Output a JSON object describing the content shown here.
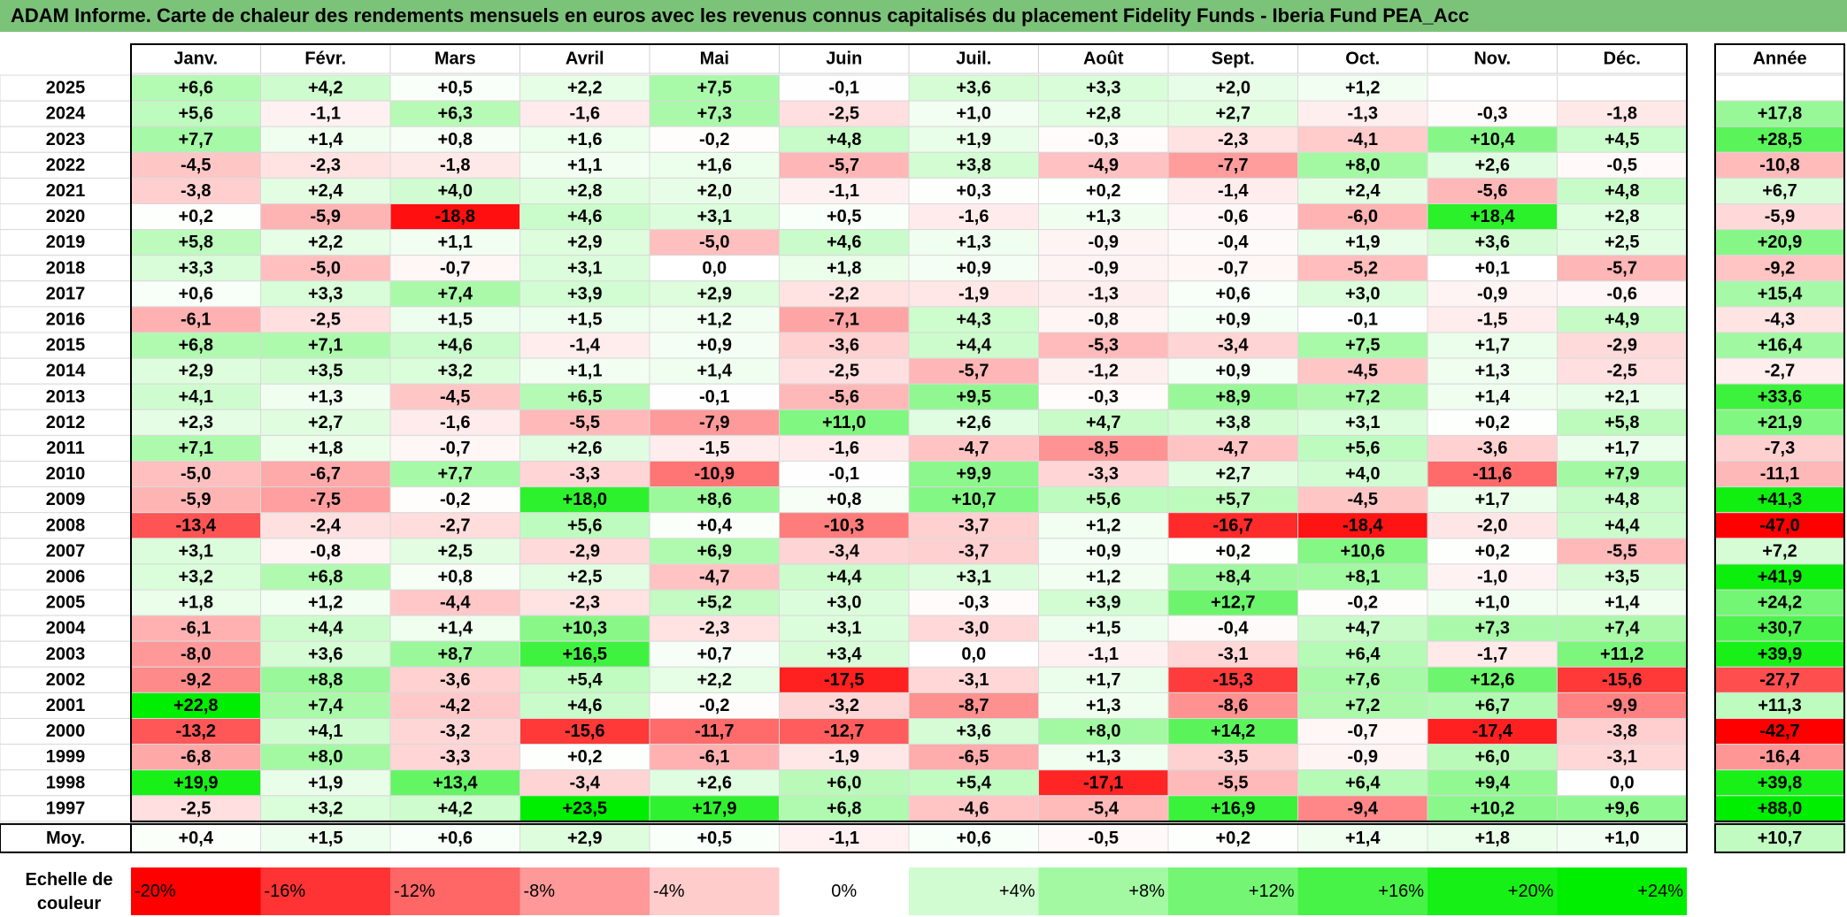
{
  "title": "ADAM Informe. Carte de chaleur des rendements mensuels en euros avec les revenus connus capitalisés du placement Fidelity Funds - Iberia Fund PEA_Acc",
  "chart_data": {
    "type": "heatmap",
    "months": [
      "Janv.",
      "Févr.",
      "Mars",
      "Avril",
      "Mai",
      "Juin",
      "Juil.",
      "Août",
      "Sept.",
      "Oct.",
      "Nov.",
      "Déc."
    ],
    "year_header": "Année",
    "rows": [
      {
        "year": "2025",
        "values": [
          "+6,6",
          "+4,2",
          "+0,5",
          "+2,2",
          "+7,5",
          "-0,1",
          "+3,6",
          "+3,3",
          "+2,0",
          "+1,2",
          "",
          ""
        ],
        "annual": ""
      },
      {
        "year": "2024",
        "values": [
          "+5,6",
          "-1,1",
          "+6,3",
          "-1,6",
          "+7,3",
          "-2,5",
          "+1,0",
          "+2,8",
          "+2,7",
          "-1,3",
          "-0,3",
          "-1,8"
        ],
        "annual": "+17,8"
      },
      {
        "year": "2023",
        "values": [
          "+7,7",
          "+1,4",
          "+0,8",
          "+1,6",
          "-0,2",
          "+4,8",
          "+1,9",
          "-0,3",
          "-2,3",
          "-4,1",
          "+10,4",
          "+4,5"
        ],
        "annual": "+28,5"
      },
      {
        "year": "2022",
        "values": [
          "-4,5",
          "-2,3",
          "-1,8",
          "+1,1",
          "+1,6",
          "-5,7",
          "+3,8",
          "-4,9",
          "-7,7",
          "+8,0",
          "+2,6",
          "-0,5"
        ],
        "annual": "-10,8"
      },
      {
        "year": "2021",
        "values": [
          "-3,8",
          "+2,4",
          "+4,0",
          "+2,8",
          "+2,0",
          "-1,1",
          "+0,3",
          "+0,2",
          "-1,4",
          "+2,4",
          "-5,6",
          "+4,8"
        ],
        "annual": "+6,7"
      },
      {
        "year": "2020",
        "values": [
          "+0,2",
          "-5,9",
          "-18,8",
          "+4,6",
          "+3,1",
          "+0,5",
          "-1,6",
          "+1,3",
          "-0,6",
          "-6,0",
          "+18,4",
          "+2,8"
        ],
        "annual": "-5,9"
      },
      {
        "year": "2019",
        "values": [
          "+5,8",
          "+2,2",
          "+1,1",
          "+2,9",
          "-5,0",
          "+4,6",
          "+1,3",
          "-0,9",
          "-0,4",
          "+1,9",
          "+3,6",
          "+2,5"
        ],
        "annual": "+20,9"
      },
      {
        "year": "2018",
        "values": [
          "+3,3",
          "-5,0",
          "-0,7",
          "+3,1",
          "0,0",
          "+1,8",
          "+0,9",
          "-0,9",
          "-0,7",
          "-5,2",
          "+0,1",
          "-5,7"
        ],
        "annual": "-9,2"
      },
      {
        "year": "2017",
        "values": [
          "+0,6",
          "+3,3",
          "+7,4",
          "+3,9",
          "+2,9",
          "-2,2",
          "-1,9",
          "-1,3",
          "+0,6",
          "+3,0",
          "-0,9",
          "-0,6"
        ],
        "annual": "+15,4"
      },
      {
        "year": "2016",
        "values": [
          "-6,1",
          "-2,5",
          "+1,5",
          "+1,5",
          "+1,2",
          "-7,1",
          "+4,3",
          "-0,8",
          "+0,9",
          "-0,1",
          "-1,5",
          "+4,9"
        ],
        "annual": "-4,3"
      },
      {
        "year": "2015",
        "values": [
          "+6,8",
          "+7,1",
          "+4,6",
          "-1,4",
          "+0,9",
          "-3,6",
          "+4,4",
          "-5,3",
          "-3,4",
          "+7,5",
          "+1,7",
          "-2,9"
        ],
        "annual": "+16,4"
      },
      {
        "year": "2014",
        "values": [
          "+2,9",
          "+3,5",
          "+3,2",
          "+1,1",
          "+1,4",
          "-2,5",
          "-5,7",
          "-1,2",
          "+0,9",
          "-4,5",
          "+1,3",
          "-2,5"
        ],
        "annual": "-2,7"
      },
      {
        "year": "2013",
        "values": [
          "+4,1",
          "+1,3",
          "-4,5",
          "+6,5",
          "-0,1",
          "-5,6",
          "+9,5",
          "-0,3",
          "+8,9",
          "+7,2",
          "+1,4",
          "+2,1"
        ],
        "annual": "+33,6"
      },
      {
        "year": "2012",
        "values": [
          "+2,3",
          "+2,7",
          "-1,6",
          "-5,5",
          "-7,9",
          "+11,0",
          "+2,6",
          "+4,7",
          "+3,8",
          "+3,1",
          "+0,2",
          "+5,8"
        ],
        "annual": "+21,9"
      },
      {
        "year": "2011",
        "values": [
          "+7,1",
          "+1,8",
          "-0,7",
          "+2,6",
          "-1,5",
          "-1,6",
          "-4,7",
          "-8,5",
          "-4,7",
          "+5,6",
          "-3,6",
          "+1,7"
        ],
        "annual": "-7,3"
      },
      {
        "year": "2010",
        "values": [
          "-5,0",
          "-6,7",
          "+7,7",
          "-3,3",
          "-10,9",
          "-0,1",
          "+9,9",
          "-3,3",
          "+2,7",
          "+4,0",
          "-11,6",
          "+7,9"
        ],
        "annual": "-11,1"
      },
      {
        "year": "2009",
        "values": [
          "-5,9",
          "-7,5",
          "-0,2",
          "+18,0",
          "+8,6",
          "+0,8",
          "+10,7",
          "+5,6",
          "+5,7",
          "-4,5",
          "+1,7",
          "+4,8"
        ],
        "annual": "+41,3"
      },
      {
        "year": "2008",
        "values": [
          "-13,4",
          "-2,4",
          "-2,7",
          "+5,6",
          "+0,4",
          "-10,3",
          "-3,7",
          "+1,2",
          "-16,7",
          "-18,4",
          "-2,0",
          "+4,4"
        ],
        "annual": "-47,0"
      },
      {
        "year": "2007",
        "values": [
          "+3,1",
          "-0,8",
          "+2,5",
          "-2,9",
          "+6,9",
          "-3,4",
          "-3,7",
          "+0,9",
          "+0,2",
          "+10,6",
          "+0,2",
          "-5,5"
        ],
        "annual": "+7,2"
      },
      {
        "year": "2006",
        "values": [
          "+3,2",
          "+6,8",
          "+0,8",
          "+2,5",
          "-4,7",
          "+4,4",
          "+3,1",
          "+1,2",
          "+8,4",
          "+8,1",
          "-1,0",
          "+3,5"
        ],
        "annual": "+41,9"
      },
      {
        "year": "2005",
        "values": [
          "+1,8",
          "+1,2",
          "-4,4",
          "-2,3",
          "+5,2",
          "+3,0",
          "-0,3",
          "+3,9",
          "+12,7",
          "-0,2",
          "+1,0",
          "+1,4"
        ],
        "annual": "+24,2"
      },
      {
        "year": "2004",
        "values": [
          "-6,1",
          "+4,4",
          "+1,4",
          "+10,3",
          "-2,3",
          "+3,1",
          "-3,0",
          "+1,5",
          "-0,4",
          "+4,7",
          "+7,3",
          "+7,4"
        ],
        "annual": "+30,7"
      },
      {
        "year": "2003",
        "values": [
          "-8,0",
          "+3,6",
          "+8,7",
          "+16,5",
          "+0,7",
          "+3,4",
          "0,0",
          "-1,1",
          "-3,1",
          "+6,4",
          "-1,7",
          "+11,2"
        ],
        "annual": "+39,9"
      },
      {
        "year": "2002",
        "values": [
          "-9,2",
          "+8,8",
          "-3,6",
          "+5,4",
          "+2,2",
          "-17,5",
          "-3,1",
          "+1,7",
          "-15,3",
          "+7,6",
          "+12,6",
          "-15,6"
        ],
        "annual": "-27,7"
      },
      {
        "year": "2001",
        "values": [
          "+22,8",
          "+7,4",
          "-4,2",
          "+4,6",
          "-0,2",
          "-3,2",
          "-8,7",
          "+1,3",
          "-8,6",
          "+7,2",
          "+6,7",
          "-9,9"
        ],
        "annual": "+11,3"
      },
      {
        "year": "2000",
        "values": [
          "-13,2",
          "+4,1",
          "-3,2",
          "-15,6",
          "-11,7",
          "-12,7",
          "+3,6",
          "+8,0",
          "+14,2",
          "-0,7",
          "-17,4",
          "-3,8"
        ],
        "annual": "-42,7"
      },
      {
        "year": "1999",
        "values": [
          "-6,8",
          "+8,0",
          "-3,3",
          "+0,2",
          "-6,1",
          "-1,9",
          "-6,5",
          "+1,3",
          "-3,5",
          "-0,9",
          "+6,0",
          "-3,1"
        ],
        "annual": "-16,4"
      },
      {
        "year": "1998",
        "values": [
          "+19,9",
          "+1,9",
          "+13,4",
          "-3,4",
          "+2,6",
          "+6,0",
          "+5,4",
          "-17,1",
          "-5,5",
          "+6,4",
          "+9,4",
          "0,0"
        ],
        "annual": "+39,8"
      },
      {
        "year": "1997",
        "values": [
          "-2,5",
          "+3,2",
          "+4,2",
          "+23,5",
          "+17,9",
          "+6,8",
          "-4,6",
          "-5,4",
          "+16,9",
          "-9,4",
          "+10,2",
          "+9,6"
        ],
        "annual": "+88,0"
      }
    ],
    "average": {
      "label": "Moy.",
      "values": [
        "+0,4",
        "+1,5",
        "+0,6",
        "+2,9",
        "+0,5",
        "-1,1",
        "+0,6",
        "-0,5",
        "+0,2",
        "+1,4",
        "+1,8",
        "+1,0"
      ],
      "annual": "+10,7"
    },
    "scale": {
      "label_line1": "Echelle de",
      "label_line2": "couleur",
      "steps": [
        {
          "label": "-20%",
          "value": -20
        },
        {
          "label": "-16%",
          "value": -16
        },
        {
          "label": "-12%",
          "value": -12
        },
        {
          "label": "-8%",
          "value": -8
        },
        {
          "label": "-4%",
          "value": -4
        },
        {
          "label": "0%",
          "value": 0
        },
        {
          "label": "+4%",
          "value": 4
        },
        {
          "label": "+8%",
          "value": 8
        },
        {
          "label": "+12%",
          "value": 12
        },
        {
          "label": "+16%",
          "value": 16
        },
        {
          "label": "+20%",
          "value": 20
        },
        {
          "label": "+24%",
          "value": 24
        }
      ]
    },
    "colors": {
      "negative_max": "#ff0000",
      "neutral": "#ffffff",
      "positive_max": "#00ee00",
      "title_bar": "#7cc37a"
    }
  }
}
